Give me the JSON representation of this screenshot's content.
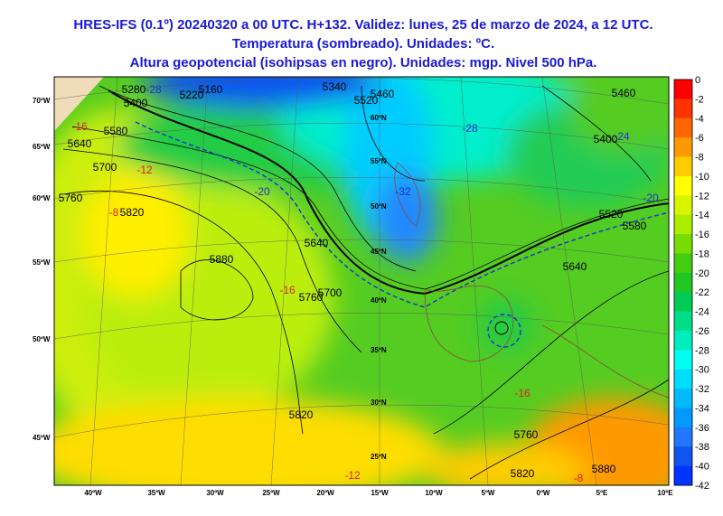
{
  "header": {
    "lines": [
      "HRES-IFS (0.1º) 20240320 a 00 UTC. H+132. Validez: lunes, 25 de marzo de 2024, a 12 UTC.",
      "Temperatura (sombreado). Unidades: ºC.",
      "Altura geopotencial (isohipsas en negro). Unidades: mgp. Nivel 500 hPa."
    ]
  },
  "colorbar": {
    "labels": [
      "0",
      "-2",
      "-4",
      "-6",
      "-8",
      "-10",
      "-12",
      "-14",
      "-16",
      "-18",
      "-20",
      "-22",
      "-24",
      "-26",
      "-28",
      "-30",
      "-32",
      "-34",
      "-36",
      "-38",
      "-40",
      "-42"
    ],
    "colors": [
      "#ff0000",
      "#ff3300",
      "#ff6600",
      "#ff9900",
      "#ffcc00",
      "#ffff00",
      "#d8f500",
      "#aaee00",
      "#77dd00",
      "#44cc11",
      "#22c822",
      "#00cc55",
      "#00dd88",
      "#00eebb",
      "#00ffee",
      "#00ddff",
      "#00bbff",
      "#0099ff",
      "#2277ff",
      "#1155ee",
      "#0033ff"
    ]
  },
  "lon_labels": [
    "40ºW",
    "35ºW",
    "30ºW",
    "25ºW",
    "20ºW",
    "15ºW",
    "10ºW",
    "5ºW",
    "0ºW",
    "5ºE",
    "10ºE"
  ],
  "lat_labels": [
    "70ºW",
    "65ºW",
    "60ºW",
    "55ºW",
    "50ºW",
    "45ºW"
  ],
  "inner_lat_labels": [
    "60ºN",
    "55ºN",
    "50ºN",
    "45ºN",
    "40ºN",
    "35ºN",
    "30ºN",
    "25ºN"
  ],
  "height_labels": [
    "5160",
    "5220",
    "5280",
    "5340",
    "5460",
    "5400",
    "5520",
    "5580",
    "5640",
    "5700",
    "5760",
    "5820",
    "5880",
    "5640",
    "5700",
    "5760",
    "5820",
    "5760",
    "5820",
    "5880",
    "5640",
    "5580",
    "5520",
    "5460",
    "5400"
  ],
  "temp_labels": [
    "-16",
    "-12",
    "-8",
    "-28",
    "-32",
    "-24",
    "-20",
    "-16",
    "-16",
    "-12",
    "-8",
    "-20",
    "-28"
  ]
}
